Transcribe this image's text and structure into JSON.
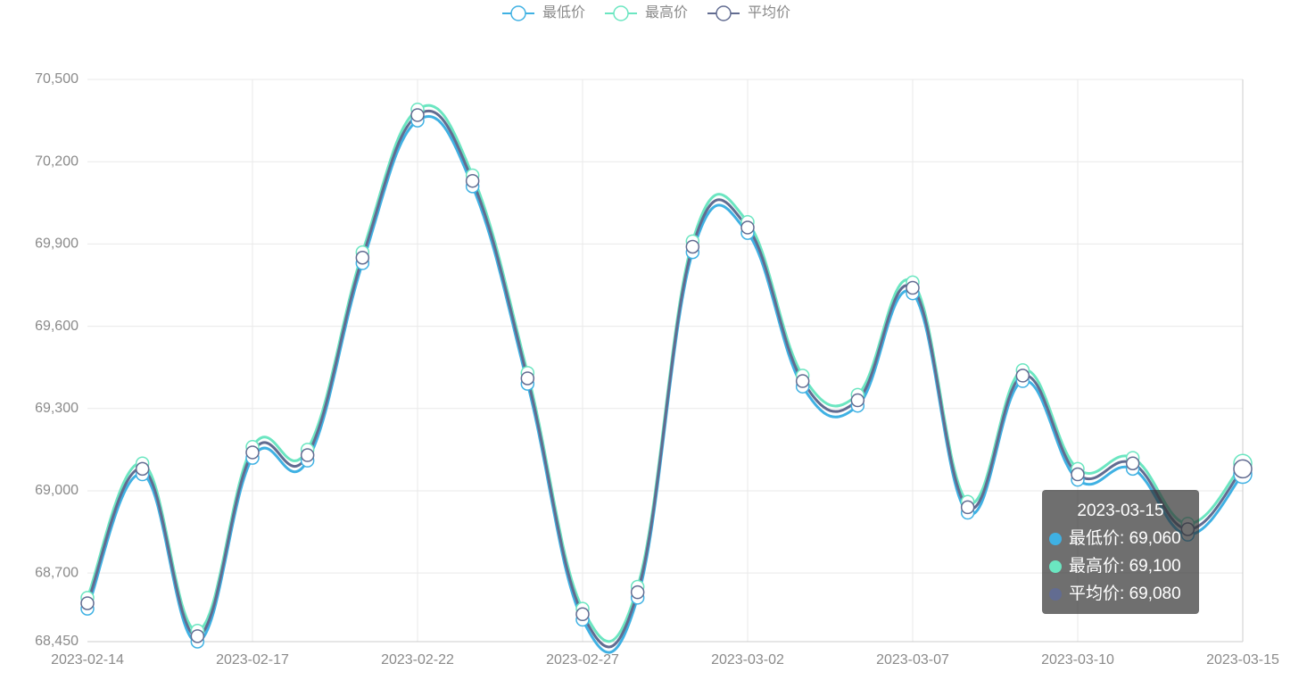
{
  "chart_data": {
    "type": "line",
    "categories": [
      "2023-02-14",
      null,
      null,
      "2023-02-17",
      null,
      null,
      "2023-02-22",
      null,
      null,
      "2023-02-27",
      null,
      null,
      "2023-03-02",
      null,
      null,
      "2023-03-07",
      null,
      null,
      "2023-03-10",
      null,
      null,
      "2023-03-15"
    ],
    "series": [
      {
        "name": "最低价",
        "color": "#3fb1e3",
        "values": [
          68570,
          69060,
          68450,
          69120,
          69110,
          69830,
          70350,
          70110,
          69390,
          68530,
          68610,
          69870,
          69940,
          69380,
          69310,
          69720,
          68920,
          69400,
          69040,
          69080,
          68840,
          69060
        ]
      },
      {
        "name": "最高价",
        "color": "#6be6c1",
        "values": [
          68610,
          69100,
          68490,
          69160,
          69150,
          69870,
          70390,
          70150,
          69430,
          68570,
          68650,
          69910,
          69980,
          69420,
          69350,
          69760,
          68960,
          69440,
          69080,
          69120,
          68880,
          69100
        ]
      },
      {
        "name": "平均价",
        "color": "#626c91",
        "values": [
          68590,
          69080,
          68470,
          69140,
          69130,
          69850,
          70370,
          70130,
          69410,
          68550,
          68630,
          69890,
          69960,
          69400,
          69330,
          69740,
          68940,
          69420,
          69060,
          69100,
          68860,
          69080
        ]
      }
    ],
    "ylim": [
      68450,
      70500
    ],
    "yticks": [
      {
        "value": 68450,
        "label": "68,450"
      },
      {
        "value": 68700,
        "label": "68,700"
      },
      {
        "value": 69000,
        "label": "69,000"
      },
      {
        "value": 69300,
        "label": "69,300"
      },
      {
        "value": 69600,
        "label": "69,600"
      },
      {
        "value": 69900,
        "label": "69,900"
      },
      {
        "value": 70200,
        "label": "70,200"
      },
      {
        "value": 70500,
        "label": "70,500"
      }
    ],
    "grid": true,
    "smooth": true,
    "legend": "top",
    "tooltip_labels": [
      "69,060",
      "69,100",
      "69,080"
    ]
  }
}
